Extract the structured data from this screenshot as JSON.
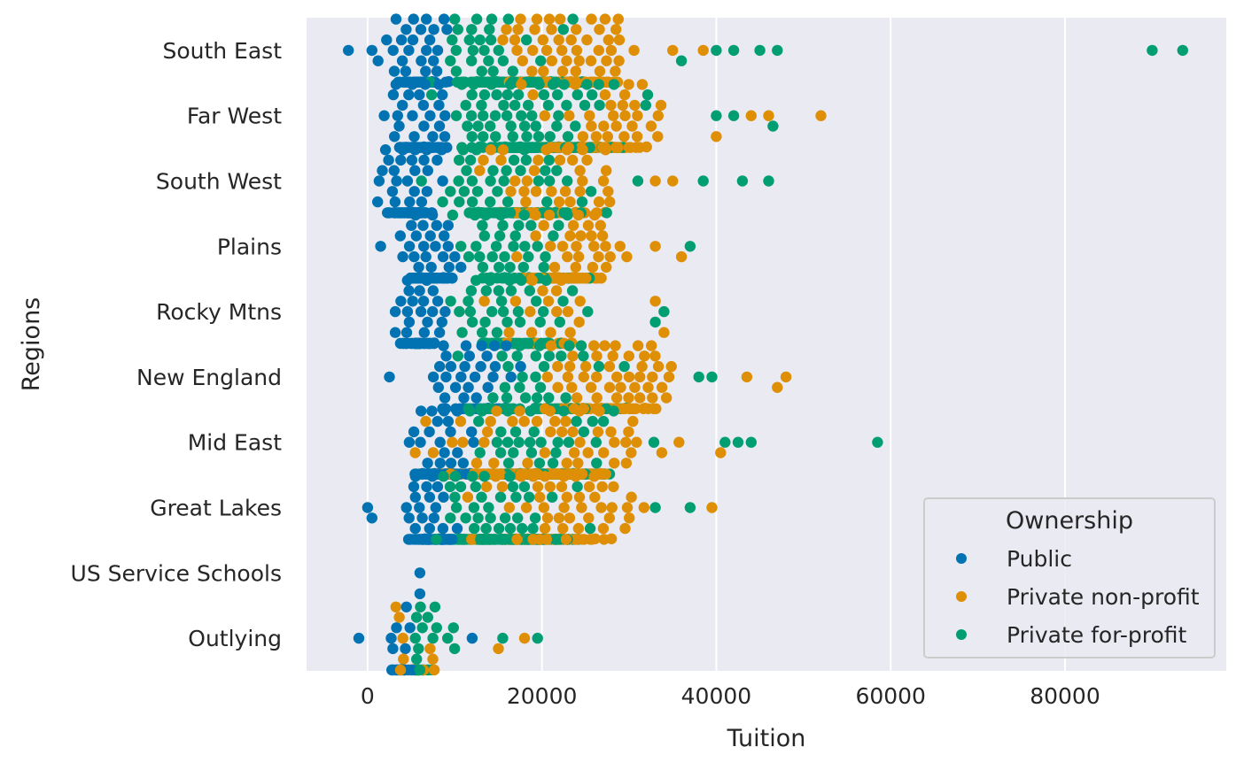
{
  "chart_data": {
    "type": "scatter",
    "subtype": "swarm",
    "title": "",
    "xlabel": "Tuition",
    "ylabel": "Regions",
    "xlim": [
      -7000,
      98500
    ],
    "xticks": [
      0,
      20000,
      40000,
      60000,
      80000
    ],
    "xtick_labels": [
      "0",
      "20000",
      "40000",
      "60000",
      "80000"
    ],
    "categories": [
      "South East",
      "Far West",
      "South West",
      "Plains",
      "Rocky Mtns",
      "New England",
      "Mid East",
      "Great Lakes",
      "US Service Schools",
      "Outlying"
    ],
    "grid": true,
    "legend_title": "Ownership",
    "legend_position": "bottom-right",
    "colors": {
      "background": "#eaeaf2",
      "grid": "#ffffff",
      "text": "#262626"
    },
    "series": [
      {
        "name": "Public",
        "color": "#0173b2",
        "regions": [
          {
            "region": "South East",
            "n": 100,
            "range": [
              1000,
              11000
            ],
            "outliers": [
              -2200,
              500,
              1200
            ]
          },
          {
            "region": "Far West",
            "n": 80,
            "range": [
              500,
              11000
            ],
            "outliers": []
          },
          {
            "region": "South West",
            "n": 95,
            "range": [
              0,
              10000
            ],
            "outliers": []
          },
          {
            "region": "Plains",
            "n": 80,
            "range": [
              2000,
              12000
            ],
            "outliers": [
              1500
            ]
          },
          {
            "region": "Rocky Mtns",
            "n": 60,
            "range": [
              2000,
              10000
            ],
            "outliers": []
          },
          {
            "region": "New England",
            "n": 50,
            "range": [
              3000,
              21000
            ],
            "outliers": [
              2500
            ]
          },
          {
            "region": "Mid East",
            "n": 95,
            "range": [
              3000,
              14000
            ],
            "outliers": []
          },
          {
            "region": "Great Lakes",
            "n": 80,
            "range": [
              2000,
              12000
            ],
            "outliers": [
              0,
              500
            ]
          },
          {
            "region": "US Service Schools",
            "n": 1,
            "range": [
              6000,
              6000
            ],
            "outliers": [
              6000
            ]
          },
          {
            "region": "Outlying",
            "n": 18,
            "range": [
              1000,
              6000
            ],
            "outliers": [
              -1000,
              12000
            ]
          }
        ]
      },
      {
        "name": "Private non-profit",
        "color": "#de8f05",
        "regions": [
          {
            "region": "South East",
            "n": 170,
            "range": [
              10000,
              34000
            ],
            "outliers": [
              35000,
              38500
            ]
          },
          {
            "region": "Far West",
            "n": 120,
            "range": [
              14000,
              38000
            ],
            "outliers": [
              40000,
              44000,
              46000,
              52000
            ]
          },
          {
            "region": "South West",
            "n": 80,
            "range": [
              10000,
              32000
            ],
            "outliers": [
              33000,
              35000
            ]
          },
          {
            "region": "Plains",
            "n": 110,
            "range": [
              13000,
              33000
            ],
            "outliers": [
              33000,
              36000
            ]
          },
          {
            "region": "Rocky Mtns",
            "n": 40,
            "range": [
              8000,
              30000
            ],
            "outliers": [
              33000,
              34000
            ]
          },
          {
            "region": "New England",
            "n": 110,
            "range": [
              15000,
              40000
            ],
            "outliers": [
              43500,
              47000,
              48000
            ]
          },
          {
            "region": "Mid East",
            "n": 210,
            "range": [
              1000,
              38000
            ],
            "outliers": [
              40500
            ]
          },
          {
            "region": "Great Lakes",
            "n": 150,
            "range": [
              5000,
              36000
            ],
            "outliers": [
              39500
            ]
          },
          {
            "region": "US Service Schools",
            "n": 0,
            "range": [
              0,
              0
            ],
            "outliers": []
          },
          {
            "region": "Outlying",
            "n": 16,
            "range": [
              2000,
              9000
            ],
            "outliers": [
              15000,
              18000
            ]
          }
        ]
      },
      {
        "name": "Private for-profit",
        "color": "#029e73",
        "regions": [
          {
            "region": "South East",
            "n": 160,
            "range": [
              4000,
              30000
            ],
            "outliers": [
              36000,
              40000,
              42000,
              45000,
              47000,
              90000,
              93500
            ]
          },
          {
            "region": "Far West",
            "n": 190,
            "range": [
              3000,
              35000
            ],
            "outliers": [
              40000,
              42000,
              46500
            ]
          },
          {
            "region": "South West",
            "n": 120,
            "range": [
              4000,
              30000
            ],
            "outliers": [
              31000,
              38500,
              43000,
              46000
            ]
          },
          {
            "region": "Plains",
            "n": 60,
            "range": [
              5000,
              30000
            ],
            "outliers": [
              37000
            ]
          },
          {
            "region": "Rocky Mtns",
            "n": 80,
            "range": [
              4000,
              29000
            ],
            "outliers": [
              33000,
              34000
            ]
          },
          {
            "region": "New England",
            "n": 90,
            "range": [
              6000,
              36000
            ],
            "outliers": [
              38000,
              39500
            ]
          },
          {
            "region": "Mid East",
            "n": 120,
            "range": [
              4000,
              36000
            ],
            "outliers": [
              41000,
              42500,
              44000,
              58500
            ]
          },
          {
            "region": "Great Lakes",
            "n": 200,
            "range": [
              2000,
              30000
            ],
            "outliers": [
              33000,
              37000
            ]
          },
          {
            "region": "US Service Schools",
            "n": 0,
            "range": [
              0,
              0
            ],
            "outliers": []
          },
          {
            "region": "Outlying",
            "n": 30,
            "range": [
              2000,
              11000
            ],
            "outliers": [
              15500,
              19500
            ]
          }
        ]
      }
    ]
  }
}
